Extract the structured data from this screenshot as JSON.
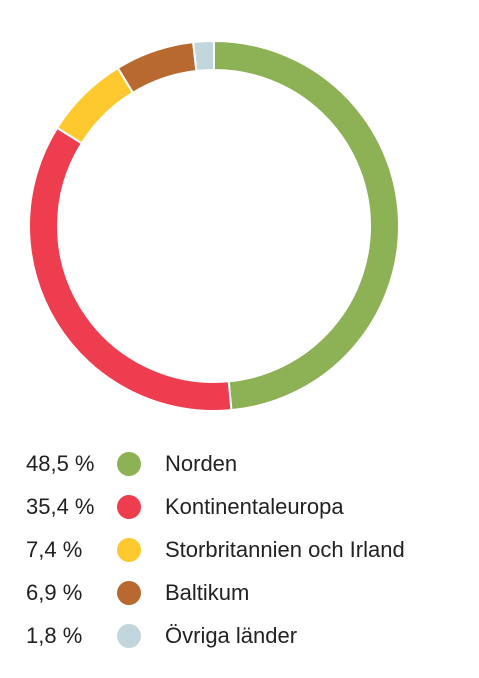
{
  "chart_data": {
    "type": "pie",
    "variant": "donut",
    "title": "",
    "legend_position": "bottom",
    "start_angle": "12 o'clock, clockwise",
    "slices": [
      {
        "label": "Norden",
        "value": 48.5,
        "value_label": "48,5 %",
        "color": "#8db255"
      },
      {
        "label": "Kontinentaleuropa",
        "value": 35.4,
        "value_label": "35,4 %",
        "color": "#ee3d4f"
      },
      {
        "label": "Storbritannien och Irland",
        "value": 7.4,
        "value_label": "7,4 %",
        "color": "#fdc92f"
      },
      {
        "label": "Baltikum",
        "value": 6.9,
        "value_label": "6,9 %",
        "color": "#b8692f"
      },
      {
        "label": "Övriga länder",
        "value": 1.8,
        "value_label": "1,8 %",
        "color": "#c2d7dd"
      }
    ]
  }
}
